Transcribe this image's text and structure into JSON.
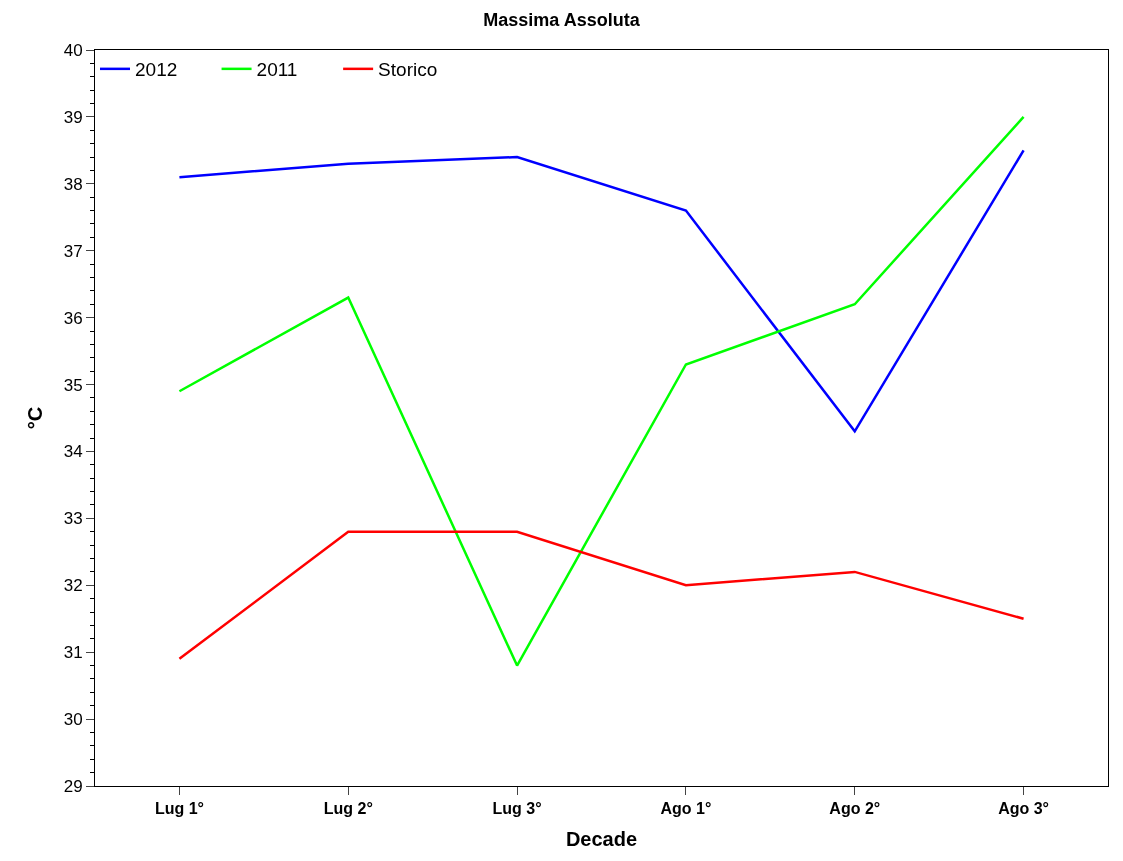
{
  "chart_data": {
    "type": "line",
    "title": "Massima Assoluta",
    "xlabel": "Decade",
    "ylabel": "°C",
    "categories": [
      "Lug 1°",
      "Lug 2°",
      "Lug 3°",
      "Ago 1°",
      "Ago 2°",
      "Ago 3°"
    ],
    "series": [
      {
        "name": "2012",
        "color": "#0000ff",
        "values": [
          38.1,
          38.3,
          38.4,
          37.6,
          34.3,
          38.5
        ]
      },
      {
        "name": "2011",
        "color": "#00ff00",
        "values": [
          34.9,
          36.3,
          30.8,
          35.3,
          36.2,
          39.0
        ]
      },
      {
        "name": "Storico",
        "color": "#ff0000",
        "values": [
          30.9,
          32.8,
          32.8,
          32.0,
          32.2,
          31.5
        ]
      }
    ],
    "ylim": [
      29,
      40
    ],
    "yticks": [
      29,
      30,
      31,
      32,
      33,
      34,
      35,
      36,
      37,
      38,
      39,
      40
    ],
    "legend": "top left",
    "marker": "none",
    "line_style": "solid"
  }
}
